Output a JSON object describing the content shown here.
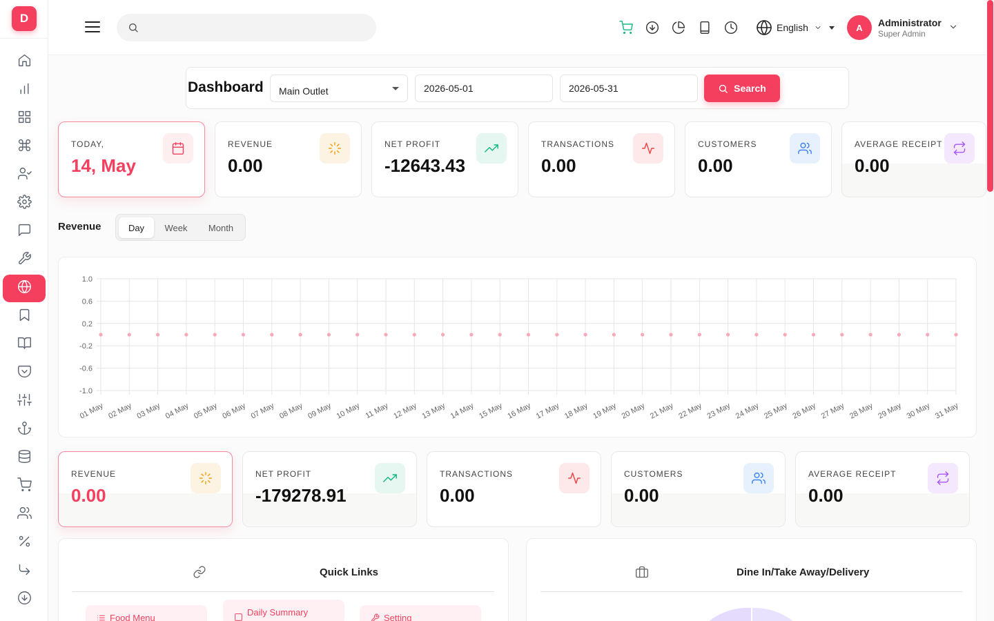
{
  "app": {
    "logo_letter": "D"
  },
  "sidebar": {
    "items": [
      {
        "name": "home-icon"
      },
      {
        "name": "bar-chart-icon"
      },
      {
        "name": "grid-icon"
      },
      {
        "name": "command-icon"
      },
      {
        "name": "user-check-icon"
      },
      {
        "name": "settings-icon"
      },
      {
        "name": "message-icon"
      },
      {
        "name": "wrench-icon"
      },
      {
        "name": "globe-icon",
        "active": true
      },
      {
        "name": "bookmark-icon"
      },
      {
        "name": "book-open-icon"
      },
      {
        "name": "pocket-icon"
      },
      {
        "name": "sliders-icon"
      },
      {
        "name": "anchor-icon"
      },
      {
        "name": "database-icon"
      },
      {
        "name": "shopping-cart-icon"
      },
      {
        "name": "users-icon"
      },
      {
        "name": "percent-icon"
      },
      {
        "name": "corner-down-right-icon"
      },
      {
        "name": "arrow-down-circle-icon"
      }
    ]
  },
  "header": {
    "search_placeholder": "",
    "icons": [
      "shopping-cart-icon",
      "download-circle-icon",
      "pie-chart-icon",
      "tablet-icon",
      "clock-icon"
    ],
    "language": "English",
    "user": {
      "initial": "A",
      "name": "Administrator",
      "role": "Super Admin"
    }
  },
  "filter": {
    "title": "Dashboard",
    "outlet": "Main Outlet",
    "date_from": "2026-05-01",
    "date_to": "2026-05-31",
    "search_label": "Search"
  },
  "top_cards": [
    {
      "label": "TODAY,",
      "value": "14, May",
      "icon": "calendar-icon",
      "accent": "#f43f5e"
    },
    {
      "label": "REVENUE",
      "value": "0.00",
      "icon": "loader-icon",
      "accent": "#f59e0b"
    },
    {
      "label": "NET PROFIT",
      "value": "-12643.43",
      "icon": "trending-up-icon",
      "accent": "#10b981"
    },
    {
      "label": "TRANSACTIONS",
      "value": "0.00",
      "icon": "activity-icon",
      "accent": "#ef4444"
    },
    {
      "label": "CUSTOMERS",
      "value": "0.00",
      "icon": "users-icon",
      "accent": "#3b82f6"
    },
    {
      "label": "AVERAGE RECEIPT",
      "value": "0.00",
      "icon": "repeat-icon",
      "accent": "#a855f7"
    }
  ],
  "revenue": {
    "title": "Revenue",
    "tabs": [
      "Day",
      "Week",
      "Month"
    ],
    "active_tab": "Day"
  },
  "chart_data": {
    "type": "scatter",
    "title": "",
    "xlabel": "",
    "ylabel": "",
    "categories": [
      "01 May",
      "02 May",
      "03 May",
      "04 May",
      "05 May",
      "06 May",
      "07 May",
      "08 May",
      "09 May",
      "10 May",
      "11 May",
      "12 May",
      "13 May",
      "14 May",
      "15 May",
      "16 May",
      "17 May",
      "18 May",
      "19 May",
      "20 May",
      "21 May",
      "22 May",
      "23 May",
      "24 May",
      "25 May",
      "26 May",
      "27 May",
      "28 May",
      "29 May",
      "30 May",
      "31 May"
    ],
    "values": [
      0,
      0,
      0,
      0,
      0,
      0,
      0,
      0,
      0,
      0,
      0,
      0,
      0,
      0,
      0,
      0,
      0,
      0,
      0,
      0,
      0,
      0,
      0,
      0,
      0,
      0,
      0,
      0,
      0,
      0,
      0
    ],
    "ylim": [
      -1.0,
      1.0
    ],
    "yticks": [
      "1.0",
      "0.6",
      "0.2",
      "-0.2",
      "-0.6",
      "-1.0"
    ],
    "grid": true,
    "color": "#f9a8b8"
  },
  "bottom_cards": [
    {
      "label": "REVENUE",
      "value": "0.00",
      "icon": "loader-icon",
      "accent": "#f59e0b"
    },
    {
      "label": "NET PROFIT",
      "value": "-179278.91",
      "icon": "trending-up-icon",
      "accent": "#10b981"
    },
    {
      "label": "TRANSACTIONS",
      "value": "0.00",
      "icon": "activity-icon",
      "accent": "#ef4444"
    },
    {
      "label": "CUSTOMERS",
      "value": "0.00",
      "icon": "users-icon",
      "accent": "#3b82f6"
    },
    {
      "label": "AVERAGE RECEIPT",
      "value": "0.00",
      "icon": "repeat-icon",
      "accent": "#a855f7"
    }
  ],
  "quick_links": {
    "title": "Quick Links",
    "items": [
      {
        "label": "Food Menu",
        "icon": "list-icon"
      },
      {
        "label": "Daily Summary",
        "icon": "square-icon"
      },
      {
        "label": "Setting",
        "icon": "wrench-icon"
      }
    ]
  },
  "order_type": {
    "title": "Dine In/Take Away/Delivery"
  }
}
